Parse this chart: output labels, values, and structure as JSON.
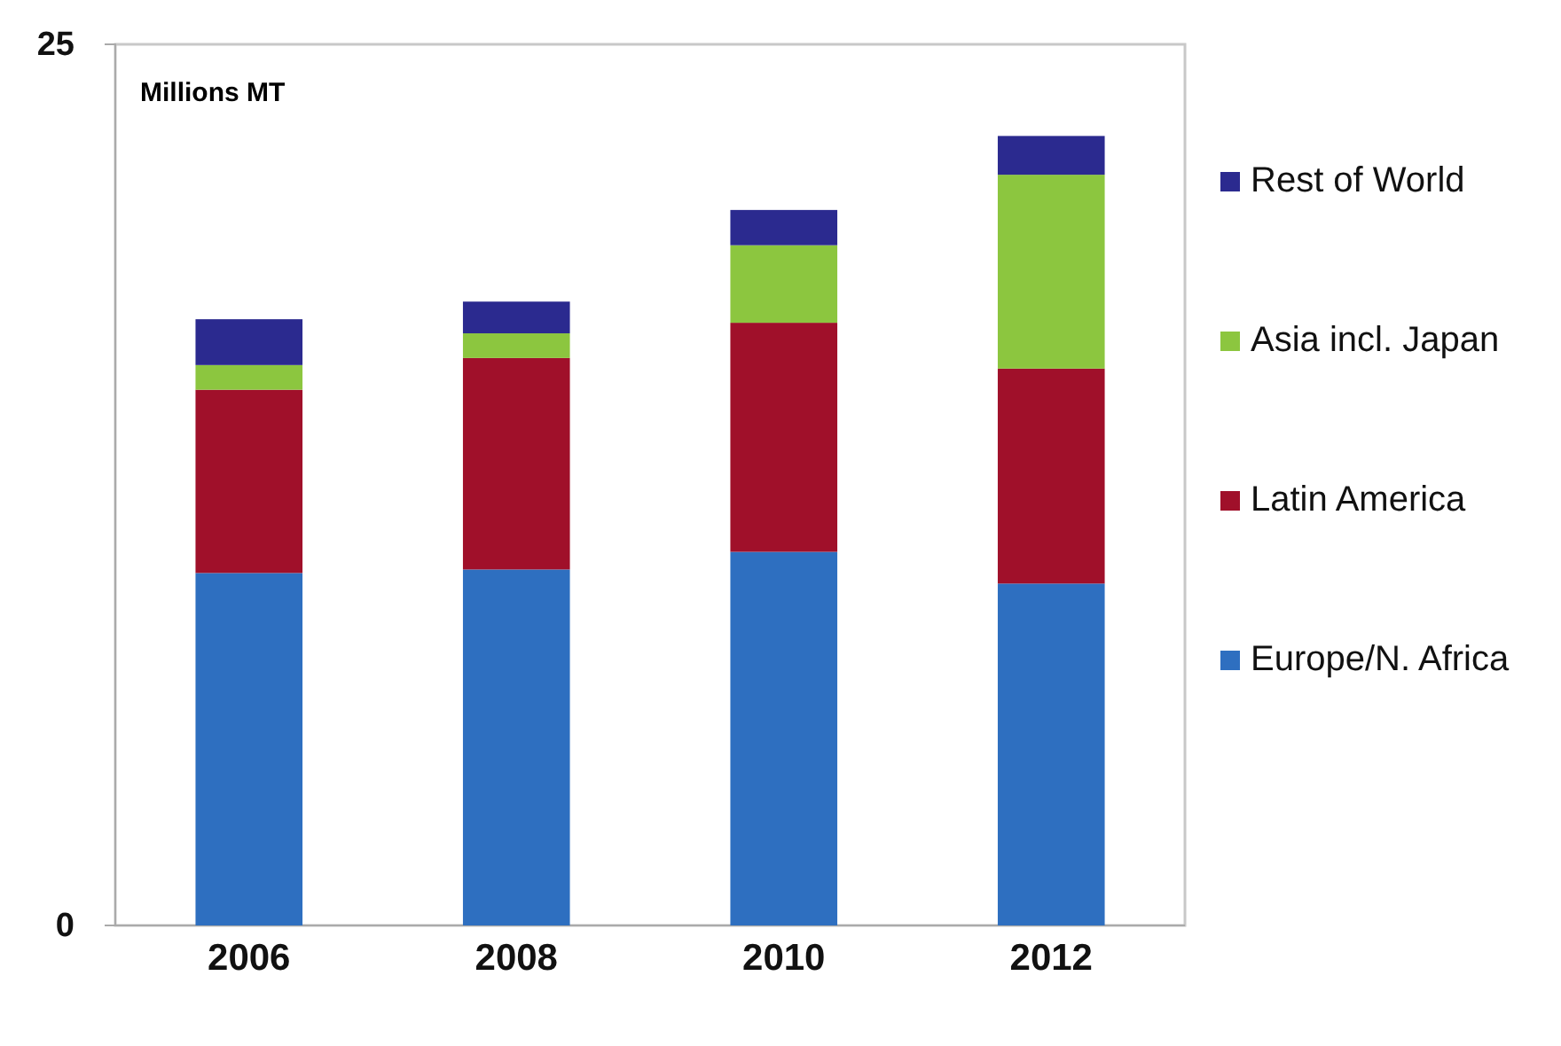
{
  "chart_data": {
    "type": "bar",
    "stacked": true,
    "ylabel": "Millions MT",
    "categories": [
      "2006",
      "2008",
      "2010",
      "2012"
    ],
    "series": [
      {
        "name": "Europe/N. Africa",
        "color": "#2e6fc0",
        "values": [
          10.0,
          10.1,
          10.6,
          9.7
        ]
      },
      {
        "name": "Latin America",
        "color": "#a0102a",
        "values": [
          5.2,
          6.0,
          6.5,
          6.1
        ]
      },
      {
        "name": "Asia incl. Japan",
        "color": "#8cc63f",
        "values": [
          0.7,
          0.7,
          2.2,
          5.5
        ]
      },
      {
        "name": "Rest of World",
        "color": "#2b2a8f",
        "values": [
          1.3,
          0.9,
          1.0,
          1.1
        ]
      }
    ],
    "ylim": [
      0,
      25
    ],
    "yticks": [
      0,
      25
    ],
    "grid": false,
    "legend": "right"
  }
}
